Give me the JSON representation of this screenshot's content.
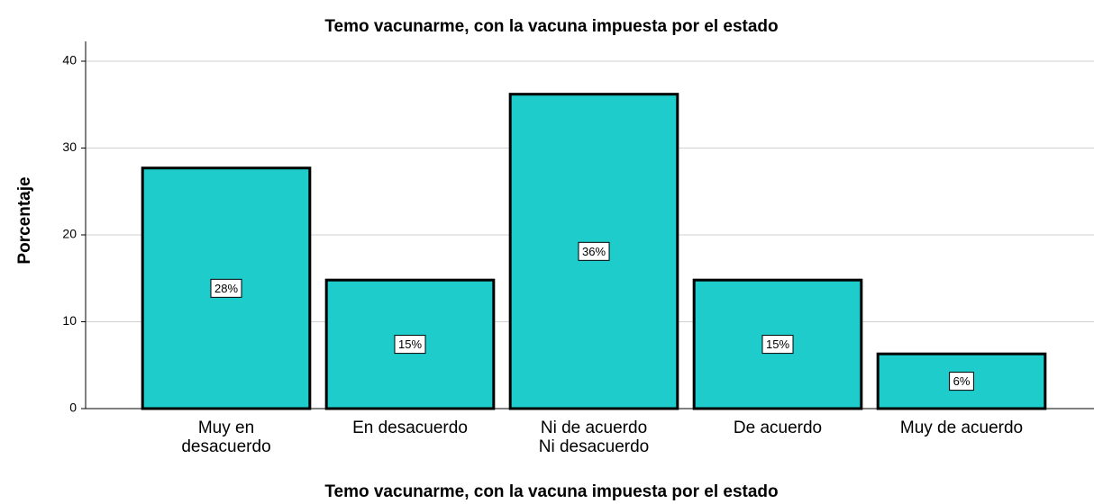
{
  "chart_data": {
    "type": "bar",
    "title": "Temo vacunarme, con la  vacuna impuesta por el estado",
    "x_label": "Temo vacunarme, con la  vacuna impuesta por el estado",
    "y_label": "Porcentaje",
    "categories": [
      "Muy en\ndesacuerdo",
      "En desacuerdo",
      "Ni de acuerdo\nNi desacuerdo",
      "De acuerdo",
      "Muy de acuerdo"
    ],
    "values": [
      27.7,
      14.8,
      36.2,
      14.8,
      6.3
    ],
    "value_labels": [
      "28%",
      "15%",
      "36%",
      "15%",
      "6%"
    ],
    "color": "#1fcccc",
    "ylim": [
      0,
      40
    ],
    "yticks": [
      0,
      10,
      20,
      30,
      40
    ],
    "grid": true
  }
}
